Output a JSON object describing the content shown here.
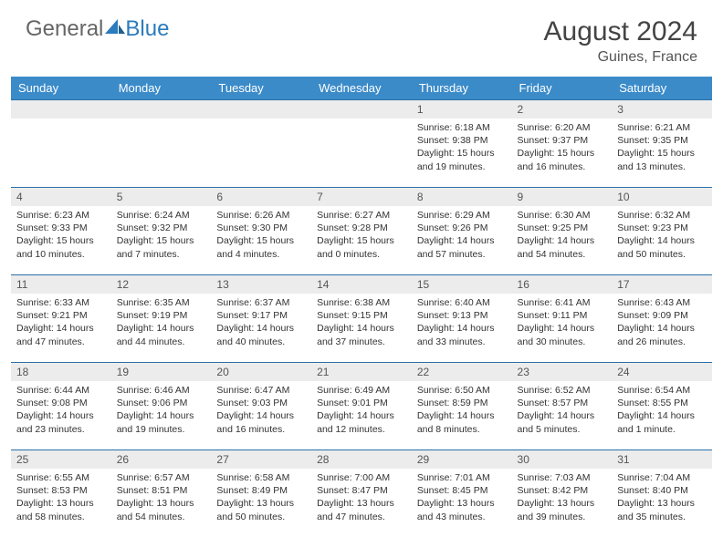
{
  "brand": {
    "part1": "General",
    "part2": "Blue"
  },
  "title": "August 2024",
  "location": "Guines, France",
  "header_row": {
    "background_color": "#3b8bc9",
    "text_color": "#ffffff"
  },
  "daynum_bar": {
    "background_color": "#ececec",
    "text_color": "#555555"
  },
  "row_border_color": "#2b6fa8",
  "columns": [
    "Sunday",
    "Monday",
    "Tuesday",
    "Wednesday",
    "Thursday",
    "Friday",
    "Saturday"
  ],
  "weeks": [
    [
      {
        "day": "",
        "sunrise": "",
        "sunset": "",
        "daylight": ""
      },
      {
        "day": "",
        "sunrise": "",
        "sunset": "",
        "daylight": ""
      },
      {
        "day": "",
        "sunrise": "",
        "sunset": "",
        "daylight": ""
      },
      {
        "day": "",
        "sunrise": "",
        "sunset": "",
        "daylight": ""
      },
      {
        "day": "1",
        "sunrise": "Sunrise: 6:18 AM",
        "sunset": "Sunset: 9:38 PM",
        "daylight": "Daylight: 15 hours and 19 minutes."
      },
      {
        "day": "2",
        "sunrise": "Sunrise: 6:20 AM",
        "sunset": "Sunset: 9:37 PM",
        "daylight": "Daylight: 15 hours and 16 minutes."
      },
      {
        "day": "3",
        "sunrise": "Sunrise: 6:21 AM",
        "sunset": "Sunset: 9:35 PM",
        "daylight": "Daylight: 15 hours and 13 minutes."
      }
    ],
    [
      {
        "day": "4",
        "sunrise": "Sunrise: 6:23 AM",
        "sunset": "Sunset: 9:33 PM",
        "daylight": "Daylight: 15 hours and 10 minutes."
      },
      {
        "day": "5",
        "sunrise": "Sunrise: 6:24 AM",
        "sunset": "Sunset: 9:32 PM",
        "daylight": "Daylight: 15 hours and 7 minutes."
      },
      {
        "day": "6",
        "sunrise": "Sunrise: 6:26 AM",
        "sunset": "Sunset: 9:30 PM",
        "daylight": "Daylight: 15 hours and 4 minutes."
      },
      {
        "day": "7",
        "sunrise": "Sunrise: 6:27 AM",
        "sunset": "Sunset: 9:28 PM",
        "daylight": "Daylight: 15 hours and 0 minutes."
      },
      {
        "day": "8",
        "sunrise": "Sunrise: 6:29 AM",
        "sunset": "Sunset: 9:26 PM",
        "daylight": "Daylight: 14 hours and 57 minutes."
      },
      {
        "day": "9",
        "sunrise": "Sunrise: 6:30 AM",
        "sunset": "Sunset: 9:25 PM",
        "daylight": "Daylight: 14 hours and 54 minutes."
      },
      {
        "day": "10",
        "sunrise": "Sunrise: 6:32 AM",
        "sunset": "Sunset: 9:23 PM",
        "daylight": "Daylight: 14 hours and 50 minutes."
      }
    ],
    [
      {
        "day": "11",
        "sunrise": "Sunrise: 6:33 AM",
        "sunset": "Sunset: 9:21 PM",
        "daylight": "Daylight: 14 hours and 47 minutes."
      },
      {
        "day": "12",
        "sunrise": "Sunrise: 6:35 AM",
        "sunset": "Sunset: 9:19 PM",
        "daylight": "Daylight: 14 hours and 44 minutes."
      },
      {
        "day": "13",
        "sunrise": "Sunrise: 6:37 AM",
        "sunset": "Sunset: 9:17 PM",
        "daylight": "Daylight: 14 hours and 40 minutes."
      },
      {
        "day": "14",
        "sunrise": "Sunrise: 6:38 AM",
        "sunset": "Sunset: 9:15 PM",
        "daylight": "Daylight: 14 hours and 37 minutes."
      },
      {
        "day": "15",
        "sunrise": "Sunrise: 6:40 AM",
        "sunset": "Sunset: 9:13 PM",
        "daylight": "Daylight: 14 hours and 33 minutes."
      },
      {
        "day": "16",
        "sunrise": "Sunrise: 6:41 AM",
        "sunset": "Sunset: 9:11 PM",
        "daylight": "Daylight: 14 hours and 30 minutes."
      },
      {
        "day": "17",
        "sunrise": "Sunrise: 6:43 AM",
        "sunset": "Sunset: 9:09 PM",
        "daylight": "Daylight: 14 hours and 26 minutes."
      }
    ],
    [
      {
        "day": "18",
        "sunrise": "Sunrise: 6:44 AM",
        "sunset": "Sunset: 9:08 PM",
        "daylight": "Daylight: 14 hours and 23 minutes."
      },
      {
        "day": "19",
        "sunrise": "Sunrise: 6:46 AM",
        "sunset": "Sunset: 9:06 PM",
        "daylight": "Daylight: 14 hours and 19 minutes."
      },
      {
        "day": "20",
        "sunrise": "Sunrise: 6:47 AM",
        "sunset": "Sunset: 9:03 PM",
        "daylight": "Daylight: 14 hours and 16 minutes."
      },
      {
        "day": "21",
        "sunrise": "Sunrise: 6:49 AM",
        "sunset": "Sunset: 9:01 PM",
        "daylight": "Daylight: 14 hours and 12 minutes."
      },
      {
        "day": "22",
        "sunrise": "Sunrise: 6:50 AM",
        "sunset": "Sunset: 8:59 PM",
        "daylight": "Daylight: 14 hours and 8 minutes."
      },
      {
        "day": "23",
        "sunrise": "Sunrise: 6:52 AM",
        "sunset": "Sunset: 8:57 PM",
        "daylight": "Daylight: 14 hours and 5 minutes."
      },
      {
        "day": "24",
        "sunrise": "Sunrise: 6:54 AM",
        "sunset": "Sunset: 8:55 PM",
        "daylight": "Daylight: 14 hours and 1 minute."
      }
    ],
    [
      {
        "day": "25",
        "sunrise": "Sunrise: 6:55 AM",
        "sunset": "Sunset: 8:53 PM",
        "daylight": "Daylight: 13 hours and 58 minutes."
      },
      {
        "day": "26",
        "sunrise": "Sunrise: 6:57 AM",
        "sunset": "Sunset: 8:51 PM",
        "daylight": "Daylight: 13 hours and 54 minutes."
      },
      {
        "day": "27",
        "sunrise": "Sunrise: 6:58 AM",
        "sunset": "Sunset: 8:49 PM",
        "daylight": "Daylight: 13 hours and 50 minutes."
      },
      {
        "day": "28",
        "sunrise": "Sunrise: 7:00 AM",
        "sunset": "Sunset: 8:47 PM",
        "daylight": "Daylight: 13 hours and 47 minutes."
      },
      {
        "day": "29",
        "sunrise": "Sunrise: 7:01 AM",
        "sunset": "Sunset: 8:45 PM",
        "daylight": "Daylight: 13 hours and 43 minutes."
      },
      {
        "day": "30",
        "sunrise": "Sunrise: 7:03 AM",
        "sunset": "Sunset: 8:42 PM",
        "daylight": "Daylight: 13 hours and 39 minutes."
      },
      {
        "day": "31",
        "sunrise": "Sunrise: 7:04 AM",
        "sunset": "Sunset: 8:40 PM",
        "daylight": "Daylight: 13 hours and 35 minutes."
      }
    ]
  ]
}
